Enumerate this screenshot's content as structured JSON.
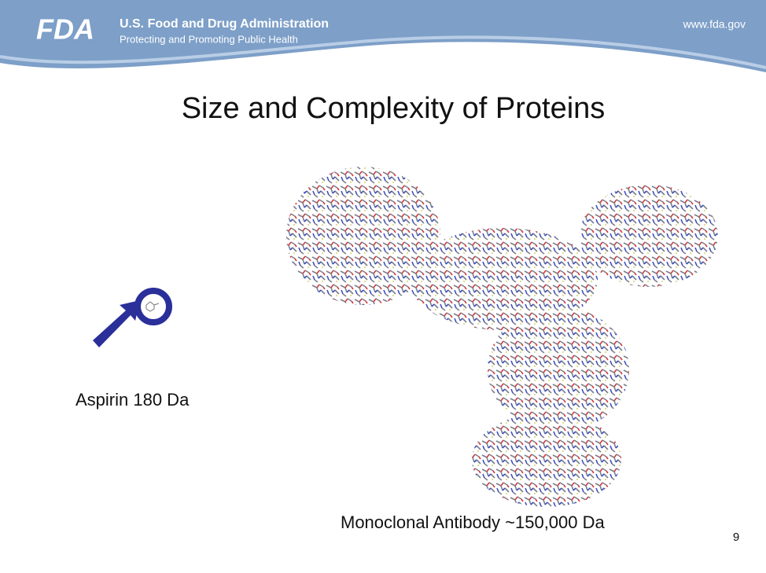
{
  "header": {
    "logo": "FDA",
    "agency": "U.S. Food and Drug Administration",
    "tagline": "Protecting and Promoting Public Health",
    "url": "www.fda.gov"
  },
  "slide": {
    "title": "Size and Complexity of Proteins",
    "aspirin_label": "Aspirin 180 Da",
    "antibody_label": "Monoclonal Antibody ~150,000 Da",
    "page_number": "9"
  }
}
